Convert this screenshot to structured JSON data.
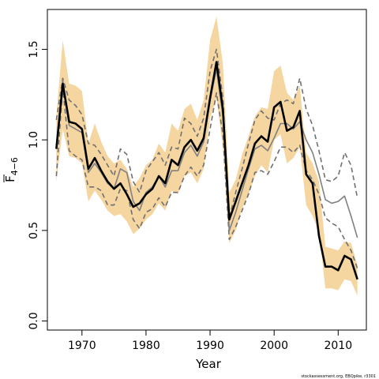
{
  "chart_data": {
    "type": "line",
    "xlabel": "Year",
    "ylabel_main": "F",
    "ylabel_sub": "4−6",
    "xlim": [
      1964.6,
      2014.4
    ],
    "ylim": [
      -0.05,
      1.72
    ],
    "xticks": [
      1970,
      1980,
      1990,
      2000,
      2010
    ],
    "xtick_labels": [
      "1970",
      "1980",
      "1990",
      "2000",
      "2010"
    ],
    "yticks": [
      0.0,
      0.5,
      1.0,
      1.5
    ],
    "ytick_labels": [
      "0.0",
      "0.5",
      "1.0",
      "1.5"
    ],
    "grid": false,
    "colors": {
      "band": "#F5D5A0",
      "estimate": "#000000",
      "grey_line": "#808080",
      "dashed": "#707070"
    },
    "years": [
      1966,
      1967,
      1968,
      1969,
      1970,
      1971,
      1972,
      1973,
      1974,
      1975,
      1976,
      1977,
      1978,
      1979,
      1980,
      1981,
      1982,
      1983,
      1984,
      1985,
      1986,
      1987,
      1988,
      1989,
      1990,
      1991,
      1992,
      1993,
      1994,
      1995,
      1996,
      1997,
      1998,
      1999,
      2000,
      2001,
      2002,
      2003,
      2004,
      2005,
      2006,
      2007,
      2008,
      2009,
      2010,
      2011,
      2012,
      2013
    ],
    "series": [
      {
        "role": "band_upper",
        "values": [
          1.13,
          1.55,
          1.31,
          1.3,
          1.27,
          0.98,
          1.09,
          0.99,
          0.91,
          0.87,
          0.89,
          0.84,
          0.74,
          0.79,
          0.86,
          0.89,
          0.98,
          0.93,
          1.09,
          1.05,
          1.17,
          1.2,
          1.11,
          1.22,
          1.55,
          1.68,
          1.42,
          0.71,
          0.78,
          0.92,
          1.02,
          1.13,
          1.18,
          1.17,
          1.38,
          1.41,
          1.26,
          1.22,
          1.3,
          0.93,
          0.87,
          0.77,
          0.41,
          0.4,
          0.39,
          0.44,
          0.43,
          0.31
        ]
      },
      {
        "role": "band_lower",
        "values": [
          0.77,
          1.06,
          0.91,
          0.9,
          0.87,
          0.66,
          0.72,
          0.67,
          0.61,
          0.58,
          0.59,
          0.55,
          0.48,
          0.51,
          0.56,
          0.59,
          0.65,
          0.61,
          0.72,
          0.7,
          0.8,
          0.82,
          0.76,
          0.84,
          1.12,
          1.23,
          0.96,
          0.43,
          0.5,
          0.62,
          0.7,
          0.8,
          0.86,
          0.82,
          1.0,
          1.03,
          0.87,
          0.9,
          0.96,
          0.64,
          0.58,
          0.49,
          0.18,
          0.18,
          0.17,
          0.23,
          0.22,
          0.14
        ]
      },
      {
        "role": "estimate",
        "values": [
          0.95,
          1.31,
          1.1,
          1.09,
          1.06,
          0.84,
          0.9,
          0.83,
          0.77,
          0.73,
          0.76,
          0.7,
          0.63,
          0.65,
          0.7,
          0.73,
          0.8,
          0.76,
          0.89,
          0.86,
          0.96,
          1.0,
          0.94,
          1.01,
          1.23,
          1.43,
          1.17,
          0.56,
          0.66,
          0.76,
          0.86,
          0.98,
          1.02,
          0.99,
          1.18,
          1.21,
          1.05,
          1.07,
          1.16,
          0.81,
          0.76,
          0.47,
          0.3,
          0.3,
          0.28,
          0.36,
          0.34,
          0.23
        ]
      },
      {
        "role": "grey_line",
        "values": [
          0.97,
          1.33,
          1.08,
          1.06,
          1.04,
          0.82,
          0.87,
          0.82,
          0.76,
          0.73,
          0.84,
          0.82,
          0.66,
          0.61,
          0.71,
          0.74,
          0.8,
          0.74,
          0.83,
          0.83,
          0.93,
          0.97,
          0.91,
          0.99,
          1.22,
          1.39,
          1.13,
          0.5,
          0.6,
          0.72,
          0.84,
          0.95,
          0.97,
          0.94,
          1.01,
          1.09,
          1.09,
          1.06,
          1.1,
          1.0,
          0.93,
          0.81,
          0.67,
          0.65,
          0.66,
          0.69,
          0.58,
          0.46
        ]
      },
      {
        "role": "dashed_upper",
        "values": [
          1.11,
          1.34,
          1.22,
          1.19,
          1.14,
          0.98,
          0.97,
          0.92,
          0.86,
          0.8,
          0.95,
          0.92,
          0.77,
          0.71,
          0.83,
          0.88,
          0.93,
          0.86,
          0.96,
          0.95,
          1.12,
          1.09,
          1.02,
          1.12,
          1.38,
          1.5,
          1.23,
          0.57,
          0.71,
          0.84,
          0.98,
          1.11,
          1.16,
          1.12,
          1.11,
          1.2,
          1.22,
          1.2,
          1.34,
          1.17,
          1.08,
          0.94,
          0.78,
          0.77,
          0.8,
          0.93,
          0.86,
          0.68
        ]
      },
      {
        "role": "dashed_lower",
        "values": [
          0.8,
          1.29,
          0.94,
          0.91,
          0.89,
          0.74,
          0.74,
          0.72,
          0.64,
          0.64,
          0.73,
          0.72,
          0.56,
          0.51,
          0.6,
          0.62,
          0.68,
          0.63,
          0.71,
          0.71,
          0.8,
          0.85,
          0.8,
          0.86,
          1.06,
          1.26,
          1.03,
          0.45,
          0.52,
          0.61,
          0.7,
          0.82,
          0.83,
          0.81,
          0.88,
          0.96,
          0.96,
          0.93,
          0.97,
          0.83,
          0.78,
          0.7,
          0.57,
          0.54,
          0.52,
          0.45,
          0.39,
          0.29
        ]
      }
    ]
  },
  "credit_text": "stockassessment.org, EBQpike, r3301"
}
